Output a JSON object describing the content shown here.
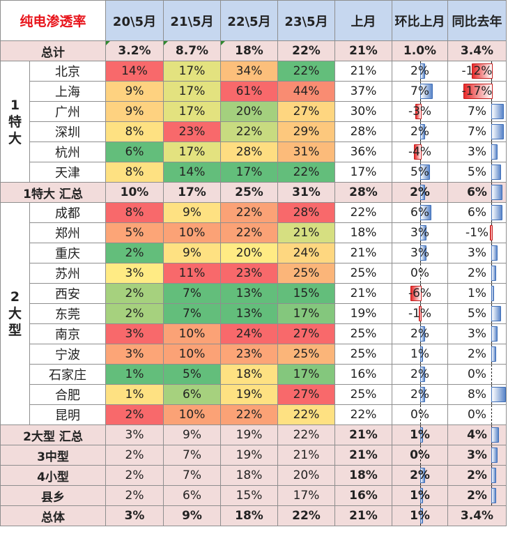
{
  "table": {
    "corner_label": "纯电渗透率",
    "headers": [
      "20\\5月",
      "21\\5月",
      "22\\5月",
      "23\\5月",
      "上月",
      "环比上月",
      "同比去年"
    ],
    "groups": [
      {
        "label": "1特大",
        "lines": [
          "1",
          "特",
          "大"
        ]
      },
      {
        "label": "2大型",
        "lines": [
          "2",
          "大",
          "型"
        ]
      }
    ],
    "rows": [
      {
        "label": "总计",
        "kind": "sum",
        "values": [
          "3.2%",
          "8.7%",
          "18%",
          "22%",
          "21%",
          "1.0%",
          "3.4%"
        ],
        "colors": [
          "",
          "",
          "",
          ""
        ],
        "mom": null,
        "yoy": null
      },
      {
        "label": "北京",
        "kind": "city",
        "group": 0,
        "values": [
          "14%",
          "17%",
          "34%",
          "22%",
          "21%",
          "2%",
          "-12%"
        ],
        "colors": [
          "#f8696b",
          "#e3e27f",
          "#fcbf7b",
          "#63be7b"
        ],
        "mom": 2,
        "yoy": -12
      },
      {
        "label": "上海",
        "kind": "city",
        "values": [
          "9%",
          "17%",
          "61%",
          "44%",
          "37%",
          "7%",
          "-17%"
        ],
        "colors": [
          "#fed280",
          "#e3e27f",
          "#f8696b",
          "#f98c72"
        ],
        "mom": 7,
        "yoy": -17
      },
      {
        "label": "广州",
        "kind": "city",
        "values": [
          "9%",
          "17%",
          "20%",
          "27%",
          "30%",
          "-3%",
          "7%"
        ],
        "colors": [
          "#fed280",
          "#e3e27f",
          "#a4d07e",
          "#fed680"
        ],
        "mom": -3,
        "yoy": 7
      },
      {
        "label": "深圳",
        "kind": "city",
        "values": [
          "8%",
          "23%",
          "22%",
          "29%",
          "28%",
          "2%",
          "7%"
        ],
        "colors": [
          "#fee182",
          "#f8696b",
          "#c8db80",
          "#fdc87d"
        ],
        "mom": 2,
        "yoy": 7
      },
      {
        "label": "杭州",
        "kind": "city",
        "values": [
          "6%",
          "17%",
          "28%",
          "31%",
          "36%",
          "-4%",
          "3%"
        ],
        "colors": [
          "#63be7b",
          "#e3e27f",
          "#fedd81",
          "#fcbb7a"
        ],
        "mom": -4,
        "yoy": 3
      },
      {
        "label": "天津",
        "kind": "city",
        "values": [
          "8%",
          "14%",
          "17%",
          "22%",
          "17%",
          "5%",
          "5%"
        ],
        "colors": [
          "#fee182",
          "#63be7b",
          "#63be7b",
          "#63be7b"
        ],
        "mom": 5,
        "yoy": 5
      },
      {
        "label": "1特大 汇总",
        "kind": "sum",
        "values": [
          "10%",
          "17%",
          "25%",
          "31%",
          "28%",
          "2%",
          "6%"
        ],
        "colors": [
          "",
          "",
          "",
          ""
        ],
        "mom": 2,
        "yoy": 6
      },
      {
        "label": "成都",
        "kind": "city",
        "group": 1,
        "values": [
          "8%",
          "9%",
          "22%",
          "28%",
          "22%",
          "6%",
          "6%"
        ],
        "colors": [
          "#f8696b",
          "#fee182",
          "#fba276",
          "#f8696b"
        ],
        "mom": 6,
        "yoy": 6
      },
      {
        "label": "郑州",
        "kind": "city",
        "values": [
          "5%",
          "10%",
          "22%",
          "21%",
          "18%",
          "3%",
          "-1%"
        ],
        "colors": [
          "#fca577",
          "#fba276",
          "#fba276",
          "#d6df81"
        ],
        "mom": 3,
        "yoy": -1
      },
      {
        "label": "重庆",
        "kind": "city",
        "values": [
          "2%",
          "9%",
          "20%",
          "24%",
          "21%",
          "3%",
          "3%"
        ],
        "colors": [
          "#63be7b",
          "#fee182",
          "#ffeb84",
          "#fed780"
        ],
        "mom": 3,
        "yoy": 3
      },
      {
        "label": "苏州",
        "kind": "city",
        "values": [
          "3%",
          "11%",
          "23%",
          "25%",
          "25%",
          "0%",
          "2%"
        ],
        "colors": [
          "#ffeb84",
          "#f8696b",
          "#f8696b",
          "#fbb579"
        ],
        "mom": 0,
        "yoy": 2
      },
      {
        "label": "西安",
        "kind": "city",
        "values": [
          "2%",
          "7%",
          "13%",
          "15%",
          "21%",
          "-6%",
          "1%"
        ],
        "colors": [
          "#a6d17e",
          "#63be7b",
          "#63be7b",
          "#63be7b"
        ],
        "mom": -6,
        "yoy": 1
      },
      {
        "label": "东莞",
        "kind": "city",
        "values": [
          "2%",
          "7%",
          "13%",
          "17%",
          "19%",
          "-1%",
          "5%"
        ],
        "colors": [
          "#a6d17e",
          "#63be7b",
          "#63be7b",
          "#84c77d"
        ],
        "mom": -1,
        "yoy": 5
      },
      {
        "label": "南京",
        "kind": "city",
        "values": [
          "3%",
          "10%",
          "24%",
          "27%",
          "25%",
          "2%",
          "3%"
        ],
        "colors": [
          "#f8696b",
          "#fba276",
          "#f8696b",
          "#f8696b"
        ],
        "mom": 2,
        "yoy": 3
      },
      {
        "label": "宁波",
        "kind": "city",
        "values": [
          "3%",
          "10%",
          "23%",
          "25%",
          "25%",
          "1%",
          "2%"
        ],
        "colors": [
          "#fca577",
          "#fba276",
          "#fca577",
          "#fbb579"
        ],
        "mom": 1,
        "yoy": 2
      },
      {
        "label": "石家庄",
        "kind": "city",
        "values": [
          "1%",
          "5%",
          "18%",
          "17%",
          "16%",
          "2%",
          "0%"
        ],
        "colors": [
          "#63be7b",
          "#63be7b",
          "#fee182",
          "#84c77d"
        ],
        "mom": 2,
        "yoy": 0
      },
      {
        "label": "合肥",
        "kind": "city",
        "values": [
          "1%",
          "6%",
          "19%",
          "27%",
          "25%",
          "2%",
          "8%"
        ],
        "colors": [
          "#fee182",
          "#a6d17e",
          "#fee182",
          "#f8696b"
        ],
        "mom": 2,
        "yoy": 8
      },
      {
        "label": "昆明",
        "kind": "city",
        "values": [
          "2%",
          "10%",
          "22%",
          "22%",
          "22%",
          "0%",
          "0%"
        ],
        "colors": [
          "#f8696b",
          "#fba276",
          "#fba276",
          "#fee182"
        ],
        "mom": 0,
        "yoy": 0
      },
      {
        "label": "2大型 汇总",
        "kind": "sum2",
        "values": [
          "3%",
          "9%",
          "19%",
          "22%",
          "21%",
          "1%",
          "4%"
        ],
        "colors": [
          "",
          "",
          "",
          ""
        ],
        "mom": 1,
        "yoy": 4
      },
      {
        "label": "3中型",
        "kind": "sum2",
        "values": [
          "2%",
          "7%",
          "19%",
          "21%",
          "21%",
          "0%",
          "3%"
        ],
        "colors": [
          "",
          "",
          "",
          ""
        ],
        "mom": 0,
        "yoy": 3
      },
      {
        "label": "4小型",
        "kind": "sum2",
        "values": [
          "2%",
          "7%",
          "18%",
          "20%",
          "18%",
          "2%",
          "2%"
        ],
        "colors": [
          "",
          "",
          "",
          ""
        ],
        "mom": 2,
        "yoy": 2
      },
      {
        "label": "县乡",
        "kind": "sum2",
        "values": [
          "2%",
          "6%",
          "15%",
          "17%",
          "16%",
          "1%",
          "2%"
        ],
        "colors": [
          "",
          "",
          "",
          ""
        ],
        "mom": 1,
        "yoy": 2
      },
      {
        "label": "总体",
        "kind": "sum",
        "values": [
          "3%",
          "9%",
          "18%",
          "22%",
          "21%",
          "1%",
          "3.4%"
        ],
        "colors": [
          "",
          "",
          "",
          ""
        ],
        "mom": 1,
        "yoy": null
      }
    ]
  }
}
